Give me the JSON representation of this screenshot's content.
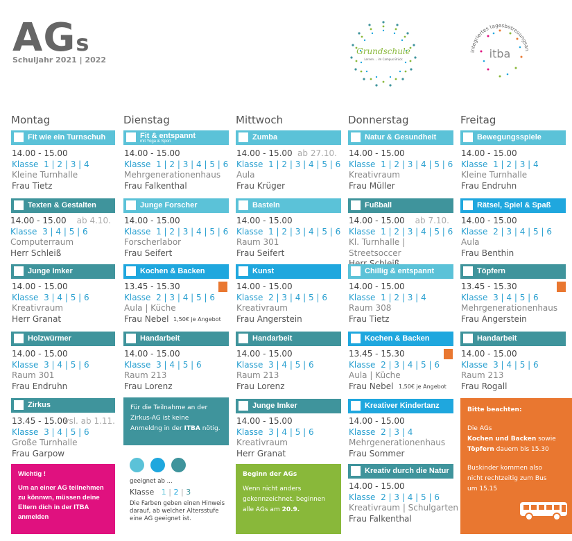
{
  "header": {
    "title": "AG",
    "title_s": "s",
    "year": "Schuljahr 2021 | 2022"
  },
  "logos": {
    "grundschule": "Grundschule",
    "grundschule_sub": "Lernen ... im Campus Brück",
    "itba": "itba",
    "itba_ring": "integriertes tagesbetreuungsangebot"
  },
  "days": [
    "Montag",
    "Dienstag",
    "Mittwoch",
    "Donnerstag",
    "Freitag"
  ],
  "mon": [
    {
      "name": "Fit wie ein Turnschuh",
      "time": "14.00 - 15.00",
      "klasse": "Klasse",
      "grades": "1 | 2 | 3 | 4",
      "room": "Kleine Turnhalle",
      "person": "Frau Tietz"
    },
    {
      "name": "Texten & Gestalten",
      "time": "14.00 - 15.00",
      "note": "ab 4.10.",
      "klasse": "Klasse",
      "grades": "3 | 4 | 5 | 6",
      "room": "Computerraum",
      "person": "Herr Schleiß"
    },
    {
      "name": "Junge Imker",
      "time": "14.00 - 15.00",
      "klasse": "Klasse",
      "grades": "3 | 4 | 5 | 6",
      "room": "Kreativraum",
      "person": "Herr Granat"
    },
    {
      "name": "Holzwürmer",
      "time": "14.00 - 15.00",
      "klasse": "Klasse",
      "grades": "3 | 4 | 5 | 6",
      "room": "Raum 301",
      "person": "Frau Endruhn"
    },
    {
      "name": "Zirkus",
      "time": "13.45 - 15.00",
      "note": "vsl. ab 1.11.",
      "klasse": "Klasse",
      "grades": "3 | 4 | 5 | 6",
      "room": "Große Turnhalle",
      "person": "Frau Garpow"
    }
  ],
  "tue": [
    {
      "name": "Fit & entspannt",
      "sub": "mit Yoga & Sport",
      "time": "14.00 - 15.00",
      "klasse": "Klasse",
      "grades": "1 | 2 | 3 | 4 | 5 | 6",
      "room": "Mehrgenerationenhaus",
      "person": "Frau Falkenthal"
    },
    {
      "name": "Junge Forscher",
      "time": "14.00 - 15.00",
      "klasse": "Klasse",
      "grades": "1 | 2 | 3 | 4 | 5 | 6",
      "room": "Forscherlabor",
      "person": "Frau Seifert"
    },
    {
      "name": "Kochen & Backen",
      "time": "13.45 - 15.30",
      "klasse": "Klasse",
      "grades": "2 | 3 | 4 | 5 | 6",
      "room": "Aula | Küche",
      "person": "Frau Nebel",
      "price": "1,50€ je Angebot"
    },
    {
      "name": "Handarbeit",
      "time": "14.00 - 15.00",
      "klasse": "Klasse",
      "grades": "3 | 4 | 5 | 6",
      "room": "Raum 213",
      "person": "Frau Lorenz"
    }
  ],
  "wed": [
    {
      "name": "Zumba",
      "time": "14.00 - 15.00",
      "note": "ab 27.10.",
      "klasse": "Klasse",
      "grades": "1 | 2 | 3 | 4 | 5 | 6",
      "room": "Aula",
      "person": "Frau Krüger"
    },
    {
      "name": "Basteln",
      "time": "14.00 - 15.00",
      "klasse": "Klasse",
      "grades": "1 | 2 | 3 | 4 | 5 | 6",
      "room": "Raum 301",
      "person": "Frau Seifert"
    },
    {
      "name": "Kunst",
      "time": "14.00 - 15.00",
      "klasse": "Klasse",
      "grades": "2 | 3 | 4 | 5 | 6",
      "room": "Kreativraum",
      "person": "Frau Angerstein"
    },
    {
      "name": "Handarbeit",
      "time": "14.00 - 15.00",
      "klasse": "Klasse",
      "grades": "3 | 4 | 5 | 6",
      "room": "Raum 213",
      "person": "Frau Lorenz"
    },
    {
      "name": "Junge Imker",
      "time": "14.00 - 15.00",
      "klasse": "Klasse",
      "grades": "3 | 4 | 5 | 6",
      "room": "Kreativraum",
      "person": "Herr Granat"
    }
  ],
  "thu": [
    {
      "name": "Natur & Gesundheit",
      "time": "14.00 - 15.00",
      "klasse": "Klasse",
      "grades": "1 | 2 | 3 | 4 | 5 | 6",
      "room": "Kreativraum",
      "person": "Frau Müller"
    },
    {
      "name": "Fußball",
      "time": "14.00 - 15.00",
      "note": "ab 7.10.",
      "klasse": "Klasse",
      "grades": "1 | 2 | 3 | 4 | 5 | 6",
      "room": "Kl. Turnhalle | Streetsoccer",
      "person": "Herr Schleiß"
    },
    {
      "name": "Chillig & entspannt",
      "time": "14.00 - 15.00",
      "klasse": "Klasse",
      "grades": "1 | 2 | 3 | 4",
      "room": "Raum 308",
      "person": "Frau Tietz"
    },
    {
      "name": "Kochen & Backen",
      "time": "13.45 - 15.30",
      "klasse": "Klasse",
      "grades": "2 | 3 | 4 | 5 | 6",
      "room": "Aula | Küche",
      "person": "Frau Nebel",
      "price": "1,50€ je Angebot"
    },
    {
      "name": "Kreativer Kindertanz",
      "time": "14.00 - 15.00",
      "klasse": "Klasse",
      "grades": "2 | 3 | 4",
      "room": "Mehrgenerationenhaus",
      "person": "Frau Sommer"
    },
    {
      "name": "Kreativ durch die Natur",
      "time": "14.00 - 15.00",
      "klasse": "Klasse",
      "grades": "2 | 3 | 4 | 5 | 6",
      "room": "Kreativraum | Schulgarten",
      "person": "Frau Falkenthal"
    }
  ],
  "fri": [
    {
      "name": "Bewegungsspiele",
      "time": "14.00 - 15.00",
      "klasse": "Klasse",
      "grades": "1 | 2 | 3 | 4",
      "room": "Kleine Turnhalle",
      "person": "Frau Endruhn"
    },
    {
      "name": "Rätsel, Spiel & Spaß",
      "time": "14.00 - 15.00",
      "klasse": "Klasse",
      "grades": "2 | 3 | 4 | 5 | 6",
      "room": "Aula",
      "person": "Frau Benthin"
    },
    {
      "name": "Töpfern",
      "time": "13.45 - 15.30",
      "klasse": "Klasse",
      "grades": "3 | 4 | 5 | 6",
      "room": "Mehrgenerationenhaus",
      "person": "Frau Angerstein"
    },
    {
      "name": "Handarbeit",
      "time": "14.00 - 15.00",
      "klasse": "Klasse",
      "grades": "3 | 4 | 5 | 6",
      "room": "Raum 213",
      "person": "Frau Rogall"
    }
  ],
  "notes": {
    "pink": {
      "title": "Wichtig !",
      "text": "Um an einer AG teilnehmen zu könnwn, müssen deine Eltern dich in der ITBA anmelden"
    },
    "teal": {
      "text1": "Für die Teilnahme an der Zirkus-AG ist keine Anmeldng in der ",
      "bold": "ITBA",
      "text2": " nötig."
    },
    "green": {
      "title": "Beginn der AGs",
      "text1": "Wenn nicht  anders gekennzeichnet, beginnen alle AGs am ",
      "bold": "20.9."
    },
    "orange": {
      "title": "Bitte beachten:",
      "text1": "Die AGs",
      "bold": "Kochen und Backen",
      "text2": " sowie ",
      "bold2": "Töpfern",
      "text3": " dauern bis 15.30",
      "text4": "Buskinder kommen also nicht rechtzeitig zum Bus um 15.15"
    }
  },
  "legend": {
    "suited": "geeignet ab ...",
    "klasse": "Klasse",
    "g1": "1",
    "g2": "2",
    "g3": "3",
    "text": "Die Farben geben einen Hinweis darauf, ab welcher Altersstufe eine AG geeignet ist."
  },
  "colors": {
    "c1": "#5BC2D8",
    "c2": "#1FA7DE",
    "c3": "#3F949C",
    "orange": "#E97730",
    "pink": "#E0117F",
    "green": "#89B83A"
  }
}
